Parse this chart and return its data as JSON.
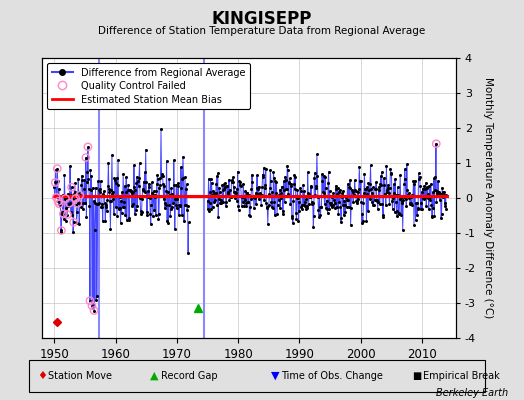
{
  "title": "KINGISEPP",
  "subtitle": "Difference of Station Temperature Data from Regional Average",
  "ylabel": "Monthly Temperature Anomaly Difference (°C)",
  "xlabel_years": [
    1950,
    1960,
    1970,
    1980,
    1990,
    2000,
    2010
  ],
  "xlim": [
    1948.0,
    2015.5
  ],
  "ylim": [
    -4,
    4
  ],
  "yticks": [
    -4,
    -3,
    -2,
    -1,
    0,
    1,
    2,
    3,
    4
  ],
  "background_color": "#e0e0e0",
  "plot_bg_color": "#ffffff",
  "grid_color": "#c8c8c8",
  "line_color": "#4444ff",
  "bias_color": "#ff0000",
  "bias_value": 0.05,
  "gap_line_x": 1957.3,
  "gap_line_x2": 1974.5,
  "record_gap_x": 1973.5,
  "record_gap_y": -3.15,
  "station_move_x": 1950.5,
  "station_move_y": -3.55,
  "watermark": "Berkeley Earth",
  "seed": 42,
  "seg1_start": 1950,
  "seg1_end": 1972,
  "seg2_start": 1975,
  "seg2_end": 2014
}
